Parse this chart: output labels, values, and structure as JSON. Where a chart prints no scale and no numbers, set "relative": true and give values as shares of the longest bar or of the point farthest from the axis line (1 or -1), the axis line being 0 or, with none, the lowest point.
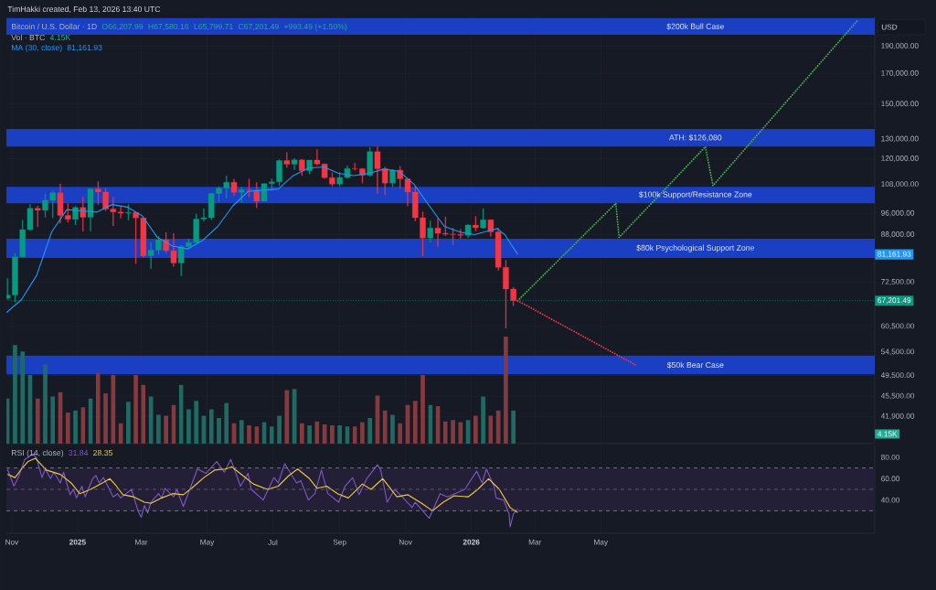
{
  "chart_data": [
    {
      "type": "candlestick",
      "title": "Bitcoin / U.S. Dollar · 1D",
      "ylabel": "USD",
      "annotations": [
        "TimHakki created, Feb 13, 2026 13:40 UTC",
        "O66,207.99",
        "H67,580.16",
        "L65,799.71",
        "C67,201.49",
        "+993.49 (+1.50%)",
        "81,161.93",
        "81,161.93"
      ],
      "x": [
        "2024-10-28",
        "2024-11-04",
        "2024-11-11",
        "2024-11-18",
        "2024-11-25",
        "2024-12-02",
        "2024-12-09",
        "2024-12-16",
        "2024-12-23",
        "2024-12-30",
        "2025-01-06",
        "2025-01-13",
        "2025-01-20",
        "2025-01-27",
        "2025-02-03",
        "2025-02-10",
        "2025-02-17",
        "2025-02-24",
        "2025-03-03",
        "2025-03-10",
        "2025-03-17",
        "2025-03-24",
        "2025-03-31",
        "2025-04-07",
        "2025-04-14",
        "2025-04-21",
        "2025-04-28",
        "2025-05-05",
        "2025-05-12",
        "2025-05-19",
        "2025-05-26",
        "2025-06-02",
        "2025-06-09",
        "2025-06-16",
        "2025-06-23",
        "2025-06-30",
        "2025-07-07",
        "2025-07-14",
        "2025-07-21",
        "2025-07-28",
        "2025-08-04",
        "2025-08-11",
        "2025-08-18",
        "2025-08-25",
        "2025-09-01",
        "2025-09-08",
        "2025-09-15",
        "2025-09-22",
        "2025-09-29",
        "2025-10-06",
        "2025-10-13",
        "2025-10-20",
        "2025-10-27",
        "2025-11-03",
        "2025-11-10",
        "2025-11-17",
        "2025-11-24",
        "2025-12-01",
        "2025-12-08",
        "2025-12-15",
        "2025-12-22",
        "2025-12-29",
        "2026-01-05",
        "2026-01-12",
        "2026-01-19",
        "2026-01-26",
        "2026-02-02",
        "2026-02-09"
      ],
      "ohlc": [
        [
          67900,
          73600,
          67500,
          68800
        ],
        [
          68800,
          81500,
          66800,
          80400
        ],
        [
          80400,
          93400,
          80200,
          89800
        ],
        [
          89800,
          99600,
          89400,
          98000
        ],
        [
          98000,
          98900,
          90800,
          97200
        ],
        [
          97200,
          104000,
          94500,
          101200
        ],
        [
          101200,
          105300,
          94200,
          104400
        ],
        [
          104400,
          108300,
          92200,
          95200
        ],
        [
          95200,
          99900,
          92500,
          93700
        ],
        [
          93700,
          98900,
          91500,
          98300
        ],
        [
          98300,
          102700,
          89200,
          94500
        ],
        [
          94500,
          106400,
          89300,
          106100
        ],
        [
          106100,
          109400,
          99500,
          104700
        ],
        [
          104700,
          106400,
          97000,
          97700
        ],
        [
          97700,
          102500,
          91200,
          96500
        ],
        [
          96500,
          98800,
          94100,
          96100
        ],
        [
          96100,
          99500,
          93400,
          96300
        ],
        [
          96300,
          96500,
          78200,
          94200
        ],
        [
          94200,
          94400,
          80200,
          80700
        ],
        [
          80700,
          85300,
          76600,
          82600
        ],
        [
          82600,
          87500,
          81200,
          86100
        ],
        [
          86100,
          88800,
          81600,
          82400
        ],
        [
          82400,
          88500,
          77200,
          78400
        ],
        [
          78400,
          84300,
          74400,
          83800
        ],
        [
          83800,
          86500,
          83100,
          85200
        ],
        [
          85200,
          95800,
          85100,
          93800
        ],
        [
          93800,
          97900,
          92900,
          94300
        ],
        [
          94300,
          104300,
          93400,
          104100
        ],
        [
          104100,
          107100,
          100700,
          106400
        ],
        [
          106400,
          111900,
          102000,
          109000
        ],
        [
          109000,
          110400,
          103100,
          104600
        ],
        [
          104600,
          106800,
          100400,
          105700
        ],
        [
          105700,
          110500,
          102700,
          105600
        ],
        [
          105600,
          108900,
          98200,
          100900
        ],
        [
          100900,
          108500,
          100800,
          108400
        ],
        [
          108400,
          110600,
          105300,
          109200
        ],
        [
          109200,
          119500,
          107500,
          119100
        ],
        [
          119100,
          123200,
          115700,
          117300
        ],
        [
          117300,
          120200,
          114700,
          119400
        ],
        [
          119400,
          119800,
          112000,
          114200
        ],
        [
          114200,
          119300,
          112700,
          119300
        ],
        [
          119300,
          124500,
          116800,
          117400
        ],
        [
          117400,
          117600,
          110600,
          111000
        ],
        [
          111000,
          113300,
          107300,
          108200
        ],
        [
          108200,
          113400,
          107300,
          111100
        ],
        [
          111100,
          116600,
          110600,
          115300
        ],
        [
          115300,
          117900,
          114400,
          115200
        ],
        [
          115200,
          115400,
          108600,
          112100
        ],
        [
          112100,
          125700,
          111600,
          123500
        ],
        [
          123500,
          126100,
          104000,
          115200
        ],
        [
          115200,
          116000,
          103500,
          108600
        ],
        [
          108600,
          114900,
          106900,
          114500
        ],
        [
          114500,
          116400,
          106300,
          110500
        ],
        [
          110500,
          110600,
          98900,
          104700
        ],
        [
          104700,
          107000,
          93000,
          94300
        ],
        [
          94300,
          96600,
          80600,
          86800
        ],
        [
          86800,
          93100,
          85300,
          90400
        ],
        [
          90400,
          94100,
          83800,
          88500
        ],
        [
          88500,
          94600,
          87600,
          88200
        ],
        [
          88200,
          90400,
          84400,
          88100
        ],
        [
          88100,
          90000,
          86600,
          87800
        ],
        [
          87800,
          91800,
          86900,
          91500
        ],
        [
          91500,
          94800,
          89300,
          90500
        ],
        [
          90500,
          97900,
          90200,
          93500
        ],
        [
          93500,
          93600,
          87300,
          89000
        ],
        [
          89000,
          90500,
          76000,
          77000
        ],
        [
          77000,
          79300,
          60000,
          70500
        ],
        [
          70500,
          71000,
          65800,
          67201.49
        ]
      ],
      "colors": [
        "#089981",
        "#089981",
        "#089981",
        "#089981",
        "#f23645",
        "#089981",
        "#089981",
        "#f23645",
        "#f23645",
        "#089981",
        "#f23645",
        "#089981",
        "#f23645",
        "#f23645",
        "#f23645",
        "#f23645",
        "#089981",
        "#f23645",
        "#f23645",
        "#089981",
        "#089981",
        "#f23645",
        "#f23645",
        "#089981",
        "#089981",
        "#089981",
        "#089981",
        "#089981",
        "#089981",
        "#089981",
        "#f23645",
        "#089981",
        "#f23645",
        "#f23645",
        "#089981",
        "#089981",
        "#089981",
        "#f23645",
        "#089981",
        "#f23645",
        "#089981",
        "#f23645",
        "#f23645",
        "#f23645",
        "#089981",
        "#089981",
        "#f23645",
        "#f23645",
        "#089981",
        "#f23645",
        "#f23645",
        "#089981",
        "#f23645",
        "#f23645",
        "#f23645",
        "#f23645",
        "#089981",
        "#f23645",
        "#f23645",
        "#f23645",
        "#f23645",
        "#089981",
        "#f23645",
        "#089981",
        "#f23645",
        "#f23645",
        "#f23645",
        "#f23645"
      ],
      "series": [
        {
          "type": "line",
          "name": "MA (30, close)",
          "color": "#2196f3",
          "x": [
            "2024-10-27",
            "2024-11-10",
            "2024-11-24",
            "2024-12-08",
            "2024-12-22",
            "2025-01-05",
            "2025-01-19",
            "2025-02-02",
            "2025-02-16",
            "2025-03-02",
            "2025-03-16",
            "2025-03-30",
            "2025-04-13",
            "2025-04-27",
            "2025-05-11",
            "2025-05-25",
            "2025-06-08",
            "2025-06-22",
            "2025-07-06",
            "2025-07-20",
            "2025-08-03",
            "2025-08-17",
            "2025-08-31",
            "2025-09-14",
            "2025-09-28",
            "2025-10-12",
            "2025-10-26",
            "2025-11-09",
            "2025-11-23",
            "2025-12-07",
            "2025-12-21",
            "2026-01-04",
            "2026-01-18",
            "2026-01-25",
            "2026-02-01",
            "2026-02-13"
          ],
          "values": [
            64000,
            67500,
            74500,
            89000,
            97500,
            97000,
            96500,
            99500,
            98500,
            95000,
            87000,
            84000,
            83000,
            86000,
            91000,
            99000,
            105000,
            105500,
            106000,
            112000,
            115500,
            116000,
            113000,
            112000,
            113000,
            115000,
            114000,
            108000,
            99000,
            91000,
            89000,
            88000,
            89500,
            90200,
            88000,
            81161.93
          ]
        },
        {
          "type": "line",
          "color": "#4caf50",
          "line_style": "dotted",
          "x": [
            "2026-02-13",
            "2026-05-15",
            "2026-05-18",
            "2026-08-06",
            "2026-08-13",
            "2026-12-25"
          ],
          "values": [
            67201.49,
            100000,
            87000,
            126000,
            107500,
            211000
          ]
        },
        {
          "type": "line",
          "color": "#f23645",
          "line_style": "dotted",
          "x": [
            "2026-02-13",
            "2026-06-03"
          ],
          "values": [
            67201.49,
            51600
          ]
        }
      ],
      "ref_lines": [
        {
          "axis": "y",
          "value": 67201.49,
          "label": "67,201.49",
          "color": "#089981",
          "line_style": "dotted"
        }
      ],
      "bands": [
        {
          "axis": "y",
          "from": 199000,
          "to": 213000,
          "label": "$200k Bull Case",
          "color": "#1b3fc2"
        },
        {
          "axis": "y",
          "from": 126000,
          "to": 135500,
          "label": "ATH: $126,080",
          "color": "#1b3fc2"
        },
        {
          "axis": "y",
          "from": 100000,
          "to": 107000,
          "label": "$100k Support/Resistance Zone",
          "color": "#1b3fc2"
        },
        {
          "axis": "y",
          "from": 80000,
          "to": 86500,
          "label": "$80k Psychological Support Zone",
          "color": "#1b3fc2"
        },
        {
          "axis": "y",
          "from": 49700,
          "to": 53700,
          "label": "$50k Bear Case",
          "color": "#1b3fc2"
        }
      ],
      "xlim": [
        "2024-10-27",
        "2027-01-10"
      ],
      "xticks": [
        {
          "value": "2024-11-01",
          "label": null
        },
        {
          "value": "2025-01-01",
          "label": null
        },
        {
          "value": "2025-03-01",
          "label": null
        },
        {
          "value": "2025-05-01",
          "label": null
        },
        {
          "value": "2025-07-01",
          "label": null
        },
        {
          "value": "2025-09-01",
          "label": null
        },
        {
          "value": "2025-11-01",
          "label": null
        },
        {
          "value": "2026-01-01",
          "label": null
        },
        {
          "value": "2026-03-01",
          "label": null
        },
        {
          "value": "2026-05-01",
          "label": null
        }
      ],
      "ylim": [
        37500,
        214500
      ],
      "yticks": [
        {
          "value": 190000,
          "label": "190,000.00"
        },
        {
          "value": 170000,
          "label": "170,000.00"
        },
        {
          "value": 150000,
          "label": "150,000.00"
        },
        {
          "value": 130000,
          "label": "130,000.00"
        },
        {
          "value": 120000,
          "label": "120,000.00"
        },
        {
          "value": 108000,
          "label": "108,000.00"
        },
        {
          "value": 96000,
          "label": "96,000.00"
        },
        {
          "value": 88000,
          "label": "88,000.00"
        },
        {
          "value": 72500,
          "label": "72,500.00"
        },
        {
          "value": 60500,
          "label": "60,500.00"
        },
        {
          "value": 54500,
          "label": "54,500.00"
        },
        {
          "value": 49500,
          "label": "49,500.00"
        },
        {
          "value": 45500,
          "label": "45,500.00"
        },
        {
          "value": 41900,
          "label": "41,900.00"
        }
      ],
      "log": true,
      "grid": true,
      "tick_labels": "y"
    },
    {
      "type": "bar",
      "title": "Vol · BTC",
      "relative": true,
      "tick_labels": false,
      "annotations": [
        "4.15K",
        {
          "text": "4.15K",
          "y": 0.09
        }
      ],
      "x": [
        "2024-10-28",
        "2024-11-04",
        "2024-11-11",
        "2024-11-18",
        "2024-11-25",
        "2024-12-02",
        "2024-12-09",
        "2024-12-16",
        "2024-12-23",
        "2024-12-30",
        "2025-01-06",
        "2025-01-13",
        "2025-01-20",
        "2025-01-27",
        "2025-02-03",
        "2025-02-10",
        "2025-02-17",
        "2025-02-24",
        "2025-03-03",
        "2025-03-10",
        "2025-03-17",
        "2025-03-24",
        "2025-03-31",
        "2025-04-07",
        "2025-04-14",
        "2025-04-21",
        "2025-04-28",
        "2025-05-05",
        "2025-05-12",
        "2025-05-19",
        "2025-05-26",
        "2025-06-02",
        "2025-06-09",
        "2025-06-16",
        "2025-06-23",
        "2025-06-30",
        "2025-07-07",
        "2025-07-14",
        "2025-07-21",
        "2025-07-28",
        "2025-08-04",
        "2025-08-11",
        "2025-08-18",
        "2025-08-25",
        "2025-09-01",
        "2025-09-08",
        "2025-09-15",
        "2025-09-22",
        "2025-09-29",
        "2025-10-06",
        "2025-10-13",
        "2025-10-20",
        "2025-10-27",
        "2025-11-03",
        "2025-11-10",
        "2025-11-17",
        "2025-11-24",
        "2025-12-01",
        "2025-12-08",
        "2025-12-15",
        "2025-12-22",
        "2025-12-29",
        "2026-01-05",
        "2026-01-12",
        "2026-01-19",
        "2026-01-26",
        "2026-02-02",
        "2026-02-09"
      ],
      "values": [
        0.42,
        0.92,
        0.86,
        0.64,
        0.42,
        0.74,
        0.44,
        0.48,
        0.29,
        0.31,
        0.34,
        0.42,
        0.66,
        0.47,
        0.64,
        0.19,
        0.39,
        0.64,
        0.55,
        0.44,
        0.27,
        0.26,
        0.36,
        0.55,
        0.32,
        0.4,
        0.26,
        0.32,
        0.24,
        0.38,
        0.19,
        0.22,
        0.17,
        0.16,
        0.2,
        0.16,
        0.26,
        0.5,
        0.51,
        0.19,
        0.17,
        0.21,
        0.18,
        0.17,
        0.17,
        0.16,
        0.16,
        0.2,
        0.24,
        0.45,
        0.31,
        0.27,
        0.19,
        0.36,
        0.4,
        0.64,
        0.36,
        0.35,
        0.21,
        0.22,
        0.2,
        0.22,
        0.26,
        0.44,
        0.26,
        0.31,
        1.0,
        0.31
      ],
      "colors": [
        "#1f6b64",
        "#1f6b64",
        "#1f6b64",
        "#1f6b64",
        "#843a3e",
        "#1f6b64",
        "#1f6b64",
        "#843a3e",
        "#843a3e",
        "#1f6b64",
        "#843a3e",
        "#1f6b64",
        "#843a3e",
        "#843a3e",
        "#843a3e",
        "#843a3e",
        "#1f6b64",
        "#843a3e",
        "#843a3e",
        "#1f6b64",
        "#1f6b64",
        "#843a3e",
        "#843a3e",
        "#1f6b64",
        "#1f6b64",
        "#1f6b64",
        "#1f6b64",
        "#1f6b64",
        "#1f6b64",
        "#1f6b64",
        "#843a3e",
        "#1f6b64",
        "#843a3e",
        "#843a3e",
        "#1f6b64",
        "#1f6b64",
        "#1f6b64",
        "#843a3e",
        "#1f6b64",
        "#843a3e",
        "#1f6b64",
        "#843a3e",
        "#843a3e",
        "#843a3e",
        "#1f6b64",
        "#1f6b64",
        "#843a3e",
        "#843a3e",
        "#1f6b64",
        "#843a3e",
        "#843a3e",
        "#1f6b64",
        "#843a3e",
        "#843a3e",
        "#843a3e",
        "#843a3e",
        "#1f6b64",
        "#843a3e",
        "#843a3e",
        "#843a3e",
        "#843a3e",
        "#1f6b64",
        "#843a3e",
        "#1f6b64",
        "#843a3e",
        "#843a3e",
        "#843a3e",
        "#1f6b64"
      ],
      "xlim": [
        "2024-10-27",
        "2027-01-10"
      ]
    },
    {
      "type": "line",
      "title": "RSI (14, close)",
      "annotations": [
        "31.84",
        "28.35"
      ],
      "series": [
        {
          "color": "#7e57c2",
          "x": [
            "2024-10-28",
            "2024-11-03",
            "2024-11-07",
            "2024-11-13",
            "2024-11-21",
            "2024-11-24",
            "2024-11-29",
            "2024-12-02",
            "2024-12-07",
            "2024-12-10",
            "2024-12-16",
            "2024-12-19",
            "2024-12-25",
            "2024-12-28",
            "2024-12-31",
            "2025-01-05",
            "2025-01-08",
            "2025-01-15",
            "2025-01-18",
            "2025-01-21",
            "2025-01-25",
            "2025-02-03",
            "2025-02-07",
            "2025-02-10",
            "2025-02-20",
            "2025-02-26",
            "2025-03-01",
            "2025-03-04",
            "2025-03-07",
            "2025-03-10",
            "2025-03-17",
            "2025-03-20",
            "2025-03-23",
            "2025-03-31",
            "2025-04-03",
            "2025-04-09",
            "2025-04-15",
            "2025-04-22",
            "2025-04-30",
            "2025-05-10",
            "2025-05-17",
            "2025-05-23",
            "2025-06-01",
            "2025-06-08",
            "2025-06-11",
            "2025-06-22",
            "2025-07-02",
            "2025-07-06",
            "2025-07-12",
            "2025-07-15",
            "2025-07-23",
            "2025-07-27",
            "2025-08-03",
            "2025-08-09",
            "2025-08-15",
            "2025-08-21",
            "2025-08-31",
            "2025-09-06",
            "2025-09-13",
            "2025-09-19",
            "2025-09-26",
            "2025-10-06",
            "2025-10-09",
            "2025-10-15",
            "2025-10-22",
            "2025-10-30",
            "2025-11-07",
            "2025-11-10",
            "2025-11-23",
            "2025-12-03",
            "2025-12-10",
            "2025-12-26",
            "2026-01-02",
            "2026-01-06",
            "2026-01-11",
            "2026-01-15",
            "2026-01-22",
            "2026-01-24",
            "2026-01-31",
            "2026-02-05",
            "2026-02-06",
            "2026-02-09",
            "2026-02-13"
          ],
          "values": [
            69,
            53,
            61,
            78,
            83,
            79,
            61,
            69,
            60,
            66,
            56,
            66,
            45,
            50,
            42,
            53,
            43,
            60,
            63,
            56,
            61,
            43,
            46,
            42,
            50,
            30,
            24,
            35,
            28,
            38,
            46,
            42,
            51,
            43,
            50,
            34,
            50,
            69,
            65,
            76,
            66,
            78,
            53,
            65,
            50,
            40,
            61,
            56,
            74,
            69,
            56,
            58,
            40,
            46,
            68,
            46,
            38,
            53,
            61,
            45,
            60,
            73,
            68,
            38,
            50,
            42,
            33,
            38,
            23,
            46,
            43,
            50,
            61,
            67,
            56,
            69,
            53,
            42,
            40,
            27,
            15,
            27,
            31.84
          ]
        },
        {
          "color": "#f0c93a",
          "x": [
            "2024-10-28",
            "2024-11-04",
            "2024-11-10",
            "2024-11-16",
            "2024-11-23",
            "2024-12-03",
            "2024-12-16",
            "2024-12-26",
            "2025-01-03",
            "2025-01-13",
            "2025-01-24",
            "2025-01-31",
            "2025-02-06",
            "2025-02-12",
            "2025-02-22",
            "2025-03-04",
            "2025-03-10",
            "2025-03-20",
            "2025-03-30",
            "2025-04-09",
            "2025-04-19",
            "2025-04-28",
            "2025-05-08",
            "2025-05-18",
            "2025-05-24",
            "2025-06-03",
            "2025-06-13",
            "2025-06-26",
            "2025-07-06",
            "2025-07-16",
            "2025-07-24",
            "2025-08-04",
            "2025-08-11",
            "2025-08-20",
            "2025-08-30",
            "2025-09-09",
            "2025-09-22",
            "2025-09-30",
            "2025-10-11",
            "2025-10-24",
            "2025-11-03",
            "2025-11-16",
            "2025-11-26",
            "2025-12-06",
            "2025-12-16",
            "2025-12-29",
            "2026-01-07",
            "2026-01-17",
            "2026-01-27",
            "2026-02-06",
            "2026-02-13"
          ],
          "values": [
            64,
            61,
            69,
            76,
            79,
            68,
            64,
            56,
            46,
            50,
            56,
            60,
            53,
            45,
            43,
            38,
            37,
            42,
            46,
            45,
            53,
            61,
            68,
            69,
            71,
            63,
            55,
            50,
            53,
            63,
            69,
            60,
            51,
            53,
            46,
            42,
            55,
            50,
            60,
            43,
            45,
            37,
            30,
            38,
            44,
            43,
            50,
            60,
            50,
            33,
            28.35
          ]
        }
      ],
      "ref_lines": [
        {
          "axis": "y",
          "value": 70,
          "color": "#787b86",
          "line_style": "dashed"
        },
        {
          "axis": "y",
          "value": 50,
          "color": "#5d5f6b",
          "line_style": "dashed"
        },
        {
          "axis": "y",
          "value": 30,
          "color": "#787b86",
          "line_style": "dashed"
        }
      ],
      "bands": [
        {
          "axis": "y",
          "from": 30,
          "to": 70,
          "color": "#221f36"
        }
      ],
      "xlim": [
        "2024-10-27",
        "2027-01-10"
      ],
      "xticks": [
        {
          "value": "2024-11-01",
          "label": "Nov"
        },
        {
          "value": "2025-01-01",
          "label": "2025"
        },
        {
          "value": "2025-03-01",
          "label": "Mar"
        },
        {
          "value": "2025-05-01",
          "label": "May"
        },
        {
          "value": "2025-07-01",
          "label": "Jul"
        },
        {
          "value": "2025-09-01",
          "label": "Sep"
        },
        {
          "value": "2025-11-01",
          "label": "Nov"
        },
        {
          "value": "2026-01-01",
          "label": "2026"
        },
        {
          "value": "2026-03-01",
          "label": "Mar"
        },
        {
          "value": "2026-05-01",
          "label": "May"
        }
      ],
      "ylim": [
        9,
        91
      ],
      "yticks": [
        {
          "value": 80,
          "label": "80.00"
        },
        {
          "value": 60,
          "label": "60.00"
        },
        {
          "value": 40,
          "label": "40.00"
        }
      ],
      "grid": "x"
    }
  ]
}
